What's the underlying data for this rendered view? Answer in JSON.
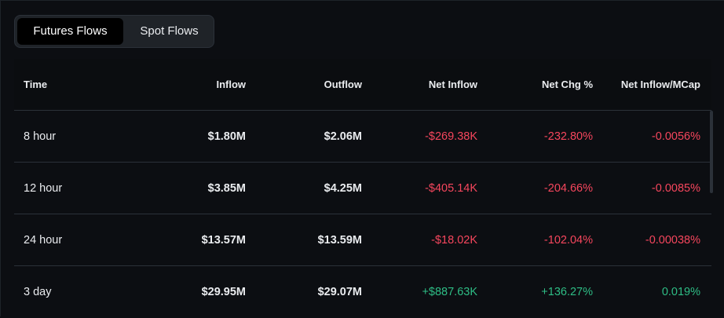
{
  "tabs": [
    {
      "label": "Futures Flows",
      "active": true
    },
    {
      "label": "Spot Flows",
      "active": false
    }
  ],
  "columns": [
    "Time",
    "Inflow",
    "Outflow",
    "Net Inflow",
    "Net Chg %",
    "Net Inflow/MCap"
  ],
  "rows": [
    {
      "time": "8 hour",
      "inflow": "$1.80M",
      "outflow": "$2.06M",
      "net_inflow": "-$269.38K",
      "net_chg": "-232.80%",
      "net_mcap": "-0.0056%",
      "sign": "neg"
    },
    {
      "time": "12 hour",
      "inflow": "$3.85M",
      "outflow": "$4.25M",
      "net_inflow": "-$405.14K",
      "net_chg": "-204.66%",
      "net_mcap": "-0.0085%",
      "sign": "neg"
    },
    {
      "time": "24 hour",
      "inflow": "$13.57M",
      "outflow": "$13.59M",
      "net_inflow": "-$18.02K",
      "net_chg": "-102.04%",
      "net_mcap": "-0.00038%",
      "sign": "neg"
    },
    {
      "time": "3 day",
      "inflow": "$29.95M",
      "outflow": "$29.07M",
      "net_inflow": "+$887.63K",
      "net_chg": "+136.27%",
      "net_mcap": "0.019%",
      "sign": "pos"
    }
  ],
  "colors": {
    "negative": "#f6465d",
    "positive": "#2ebd85",
    "background": "#0c0e12"
  }
}
